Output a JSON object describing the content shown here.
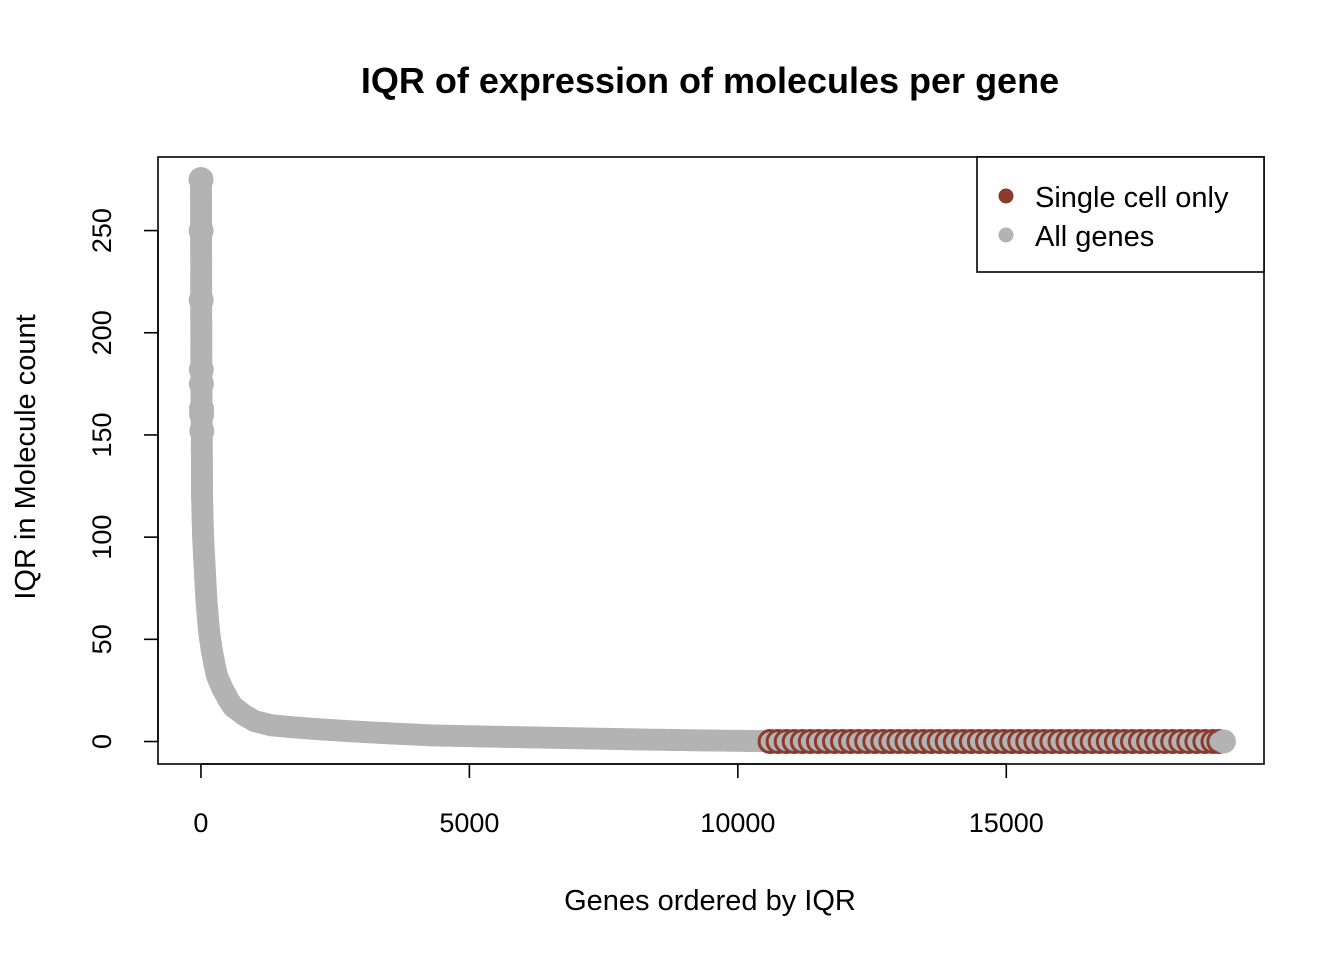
{
  "chart_data": {
    "type": "scatter",
    "title": "IQR of expression of molecules per gene",
    "xlabel": "Genes ordered by IQR",
    "ylabel": "IQR in Molecule count",
    "xlim": [
      -800,
      19800
    ],
    "ylim": [
      -11,
      286
    ],
    "xticks": [
      0,
      5000,
      10000,
      15000
    ],
    "yticks": [
      0,
      50,
      100,
      150,
      200,
      250
    ],
    "grid": false,
    "legend": {
      "position": "top-right",
      "entries": [
        {
          "label": "Single cell only",
          "color": "#8B3A2B"
        },
        {
          "label": "All genes",
          "color": "#B3B3B3"
        }
      ]
    },
    "series": [
      {
        "name": "All genes",
        "color": "#B3B3B3",
        "points": [
          [
            1,
            275
          ],
          [
            3,
            250
          ],
          [
            5,
            216
          ],
          [
            7,
            182
          ],
          [
            9,
            175
          ],
          [
            11,
            163
          ],
          [
            13,
            160
          ],
          [
            15,
            152
          ],
          [
            20,
            120
          ],
          [
            30,
            110
          ],
          [
            40,
            100
          ],
          [
            60,
            90
          ],
          [
            80,
            80
          ],
          [
            100,
            70
          ],
          [
            130,
            60
          ],
          [
            160,
            52
          ],
          [
            200,
            45
          ],
          [
            250,
            38
          ],
          [
            300,
            32
          ],
          [
            400,
            26
          ],
          [
            500,
            21
          ],
          [
            600,
            17
          ],
          [
            800,
            13
          ],
          [
            1000,
            10
          ],
          [
            1300,
            8
          ],
          [
            1700,
            7
          ],
          [
            2200,
            6
          ],
          [
            2800,
            5
          ],
          [
            3500,
            4
          ],
          [
            4300,
            3
          ],
          [
            5200,
            2.5
          ],
          [
            6200,
            2
          ],
          [
            7200,
            1.5
          ],
          [
            8200,
            1
          ],
          [
            9200,
            0.6
          ],
          [
            10200,
            0.3
          ],
          [
            11000,
            0
          ],
          [
            12000,
            0
          ],
          [
            13000,
            0
          ],
          [
            14000,
            0
          ],
          [
            15000,
            0
          ],
          [
            16000,
            0
          ],
          [
            17000,
            0
          ],
          [
            18000,
            0
          ],
          [
            19054,
            0
          ]
        ]
      },
      {
        "name": "Single cell only",
        "color": "#8B3A2B",
        "x": [
          10600,
          10750,
          10900,
          11050,
          11200,
          11350,
          11500,
          11650,
          11800,
          11950,
          12100,
          12250,
          12400,
          12550,
          12700,
          12850,
          13000,
          13150,
          13300,
          13450,
          13600,
          13750,
          13900,
          14050,
          14200,
          14350,
          14500,
          14650,
          14800,
          14950,
          15100,
          15250,
          15400,
          15550,
          15700,
          15850,
          16000,
          16150,
          16300,
          16450,
          16600,
          16750,
          16900,
          17050,
          17200,
          17350,
          17500,
          17650,
          17800,
          17950,
          18100,
          18250,
          18400,
          18550,
          18700,
          18850,
          18960
        ],
        "y": 0
      }
    ]
  }
}
